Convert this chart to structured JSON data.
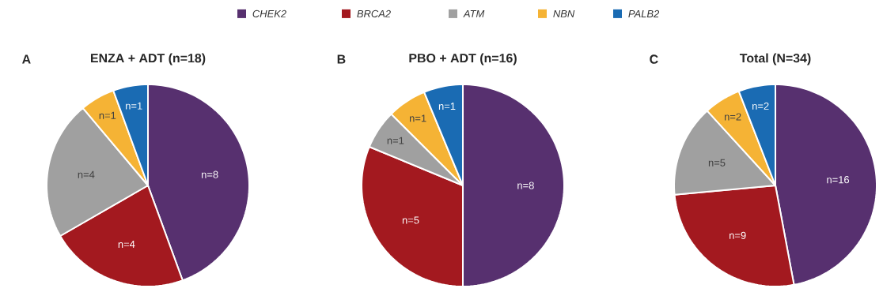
{
  "chart_data": [
    {
      "type": "pie",
      "title": "ENZA + ADT (n=18)",
      "annotations": [
        "A"
      ],
      "legend": "top",
      "categories": [
        "CHEK2",
        "BRCA2",
        "ATM",
        "NBN",
        "PALB2"
      ],
      "values": [
        8,
        4,
        4,
        1,
        1
      ],
      "value_labels": [
        "n=8",
        "n=4",
        "n=4",
        "n=1",
        "n=1"
      ],
      "colors": [
        "#57306f",
        "#a3191f",
        "#a0a0a0",
        "#f5b335",
        "#1a6bb3"
      ]
    },
    {
      "type": "pie",
      "title": "PBO + ADT (n=16)",
      "annotations": [
        "B"
      ],
      "categories": [
        null,
        null,
        null,
        null,
        null
      ],
      "values": [
        8,
        5,
        1,
        1,
        1
      ],
      "value_labels": [
        "n=8",
        "n=5",
        "n=1",
        "n=1",
        "n=1"
      ],
      "colors": [
        "#57306f",
        "#a3191f",
        "#a0a0a0",
        "#f5b335",
        "#1a6bb3"
      ]
    },
    {
      "type": "pie",
      "title": "Total (N=34)",
      "annotations": [
        "C"
      ],
      "categories": [
        null,
        null,
        null,
        null,
        null
      ],
      "values": [
        16,
        9,
        5,
        2,
        2
      ],
      "value_labels": [
        "n=16",
        "n=9",
        "n=5",
        "n=2",
        "n=2"
      ],
      "colors": [
        "#57306f",
        "#a3191f",
        "#a0a0a0",
        "#f5b335",
        "#1a6bb3"
      ]
    }
  ]
}
